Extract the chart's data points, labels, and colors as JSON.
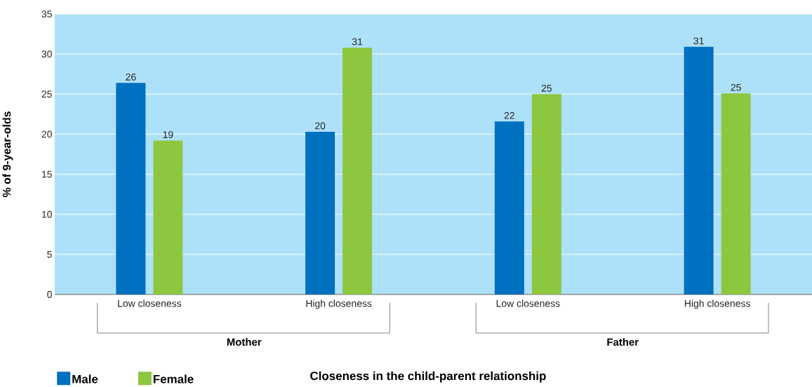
{
  "chart_data": {
    "type": "bar",
    "ylabel": "% of 9-year-olds",
    "categories": [
      "Low closeness",
      "High closeness",
      "Low closeness",
      "High closeness"
    ],
    "series": [
      {
        "name": "Male",
        "color": "#0070c0",
        "values": [
          26.4,
          20.3,
          21.6,
          30.9
        ],
        "value_labels": [
          "26",
          "20",
          "22",
          "31"
        ]
      },
      {
        "name": "Female",
        "color": "#8dc63f",
        "values": [
          19.2,
          30.8,
          25.0,
          25.1
        ],
        "value_labels": [
          "19",
          "31",
          "25",
          "25"
        ]
      }
    ],
    "annotations": [
      "Mother",
      "Father",
      "Closeness in the child-parent relationship"
    ],
    "ylim": [
      0,
      35
    ],
    "yticks": [
      0,
      5,
      10,
      15,
      20,
      25,
      30,
      35
    ],
    "grid": "y",
    "legend": "bottom left"
  }
}
